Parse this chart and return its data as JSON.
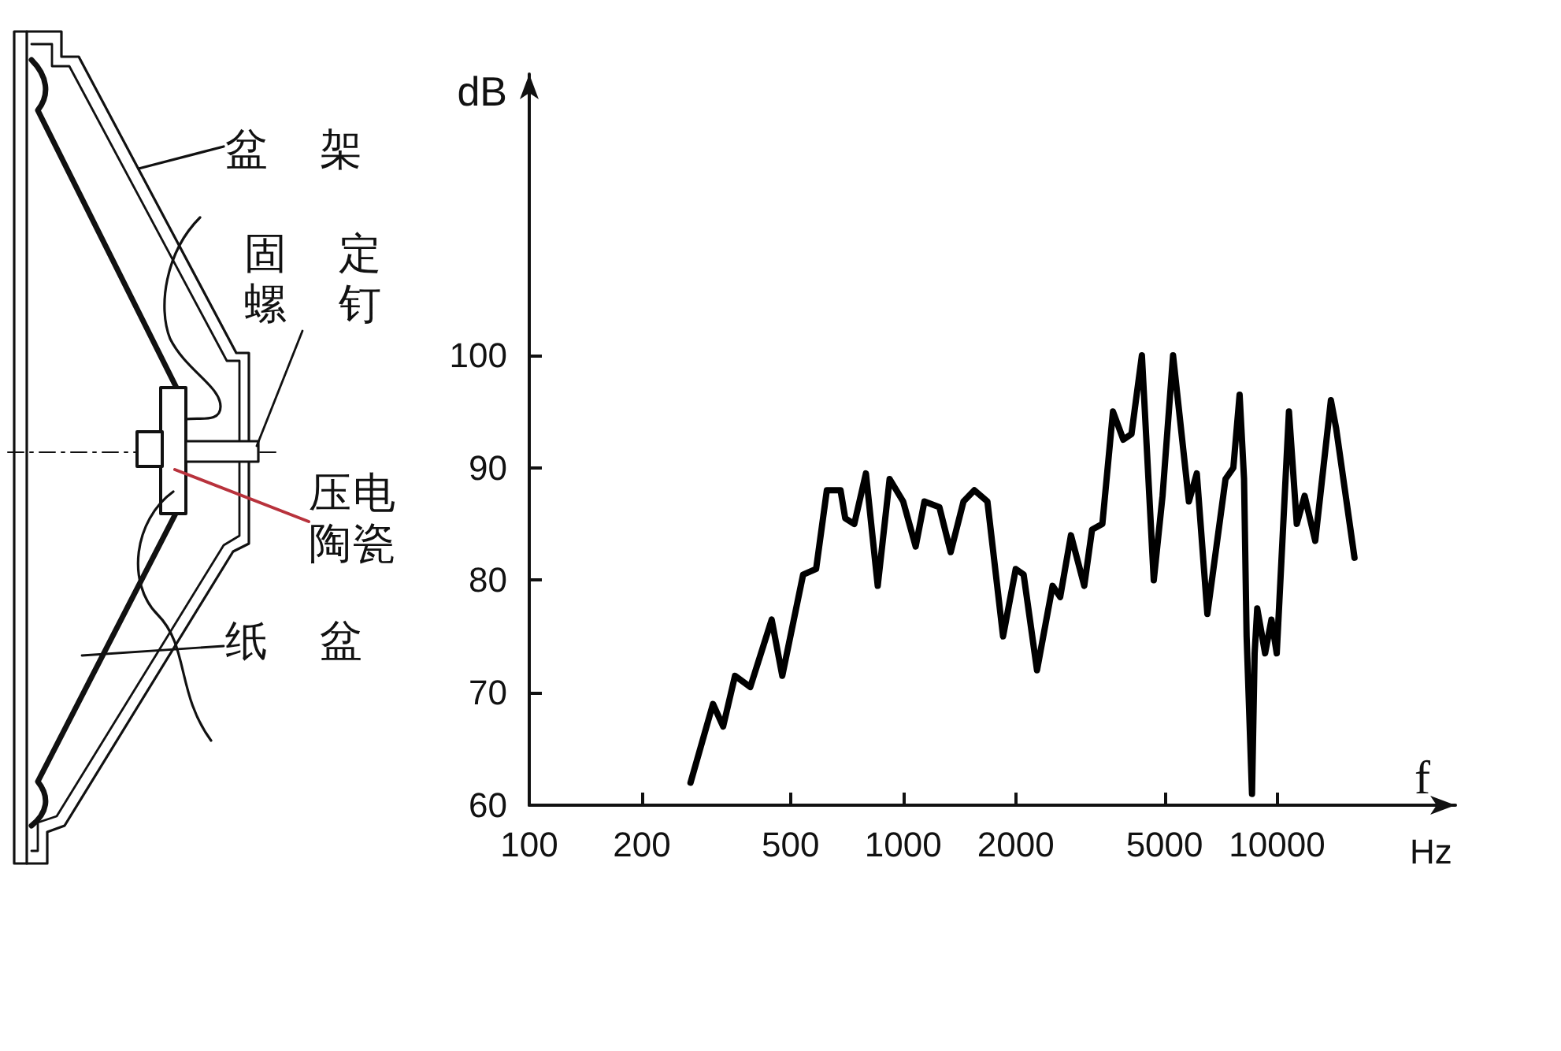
{
  "chart_data": {
    "type": "line",
    "xlabel": "f",
    "ylabel": "dB",
    "annotations": [
      "盆架",
      "固定螺钉",
      "压电陶瓷",
      "纸盆",
      "Hz"
    ],
    "x": [
      270,
      310,
      330,
      355,
      390,
      445,
      475,
      540,
      585,
      625,
      680,
      700,
      740,
      795,
      855,
      920,
      1000,
      1080,
      1140,
      1250,
      1340,
      1450,
      1550,
      1680,
      1850,
      2000,
      2100,
      2280,
      2510,
      2630,
      2810,
      3050,
      3200,
      3410,
      3640,
      3880,
      4080,
      4350,
      4680,
      4940,
      5270,
      5810,
      6100,
      6510,
      7280,
      7640,
      7940,
      8160,
      8290,
      8570,
      8710,
      8850,
      9290,
      9660,
      9980,
      10760,
      11290,
      11850,
      12650,
      13930,
      14390,
      16110
    ],
    "values": [
      62,
      69,
      67,
      71.5,
      70.5,
      76.5,
      71.5,
      80.5,
      81,
      88,
      88,
      85.5,
      85,
      89.5,
      79.5,
      89,
      87,
      83,
      87,
      86.5,
      82.5,
      87,
      88,
      87,
      75,
      81,
      80.5,
      72,
      79.5,
      78.5,
      84,
      79.5,
      84.5,
      85,
      95,
      92.5,
      93,
      100,
      80,
      87.5,
      100,
      87,
      89.5,
      77,
      89,
      90,
      96.5,
      89,
      75,
      61,
      73.5,
      77.5,
      73.5,
      76.5,
      73.5,
      95,
      85,
      87.5,
      83.5,
      96,
      93.5,
      82
    ],
    "color": "#000000",
    "log": "x",
    "xlim": [
      100,
      30000
    ],
    "xticks": [
      100,
      200,
      500,
      1000,
      2000,
      5000,
      10000
    ],
    "ylim": [
      60,
      125
    ],
    "yticks": [
      60,
      70,
      80,
      90,
      100
    ],
    "grid": false,
    "marker": "none",
    "line_style": "solid"
  }
}
